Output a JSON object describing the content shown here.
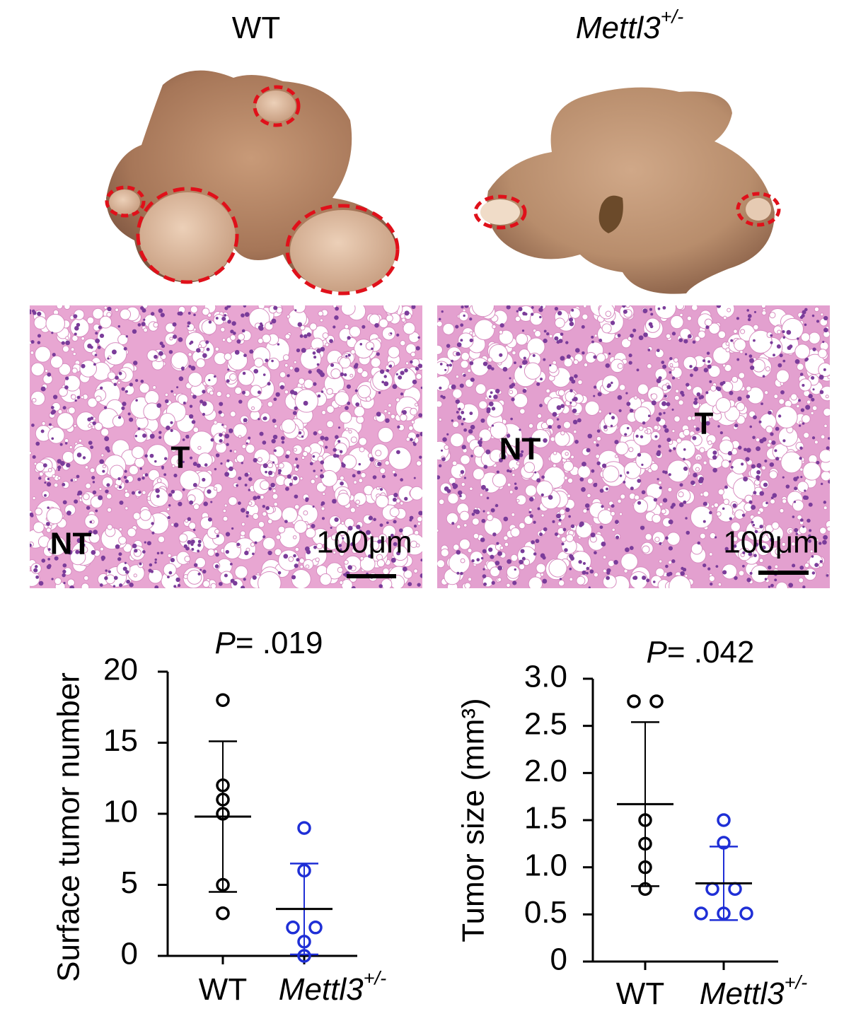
{
  "headers": [
    {
      "text": "WT",
      "style": "normal"
    },
    {
      "text": "Mettl3",
      "sup": "+/-",
      "style": "italic"
    }
  ],
  "histology": [
    {
      "tumor": "T",
      "nontumor": "NT",
      "scale": "100μm"
    },
    {
      "tumor": "T",
      "nontumor": "NT",
      "scale": "100μm"
    }
  ],
  "chart_data": [
    {
      "type": "scatter",
      "title_prefix": "P",
      "title": "= .019",
      "ylabel": "Surface tumor number",
      "categories": [
        "WT",
        "Mettl3"
      ],
      "category_superscripts": [
        null,
        "+/-"
      ],
      "category_styles": [
        "normal",
        "italic"
      ],
      "ylim": [
        0,
        20
      ],
      "yticks": [
        0,
        5,
        10,
        15,
        20
      ],
      "groups": [
        {
          "color": "#000000",
          "values": [
            18,
            12,
            11,
            10,
            5,
            3
          ],
          "mean": 9.8,
          "sd": 5.3
        },
        {
          "color": "#1f2fd6",
          "values": [
            9,
            6,
            2,
            2,
            1,
            0
          ],
          "mean": 3.3,
          "sd": 3.2
        }
      ]
    },
    {
      "type": "scatter",
      "title_prefix": "P",
      "title": "= .042",
      "ylabel": "Tumor size (mm³)",
      "categories": [
        "WT",
        "Mettl3"
      ],
      "category_superscripts": [
        null,
        "+/-"
      ],
      "category_styles": [
        "normal",
        "italic"
      ],
      "ylim": [
        0,
        3.0
      ],
      "yticks": [
        0,
        0.5,
        {
          "value": 1,
          "label": "1.0"
        },
        1.5,
        {
          "value": 2,
          "label": "2.0"
        },
        2.5,
        {
          "value": 3,
          "label": "3.0"
        }
      ],
      "groups": [
        {
          "color": "#000000",
          "values": [
            2.76,
            2.76,
            1.5,
            1.25,
            1.0,
            0.77
          ],
          "mean": 1.67,
          "sd": 0.87
        },
        {
          "color": "#1f2fd6",
          "values": [
            1.5,
            1.26,
            0.77,
            0.77,
            0.51,
            0.51,
            0.51
          ],
          "mean": 0.83,
          "sd": 0.39
        }
      ]
    }
  ]
}
